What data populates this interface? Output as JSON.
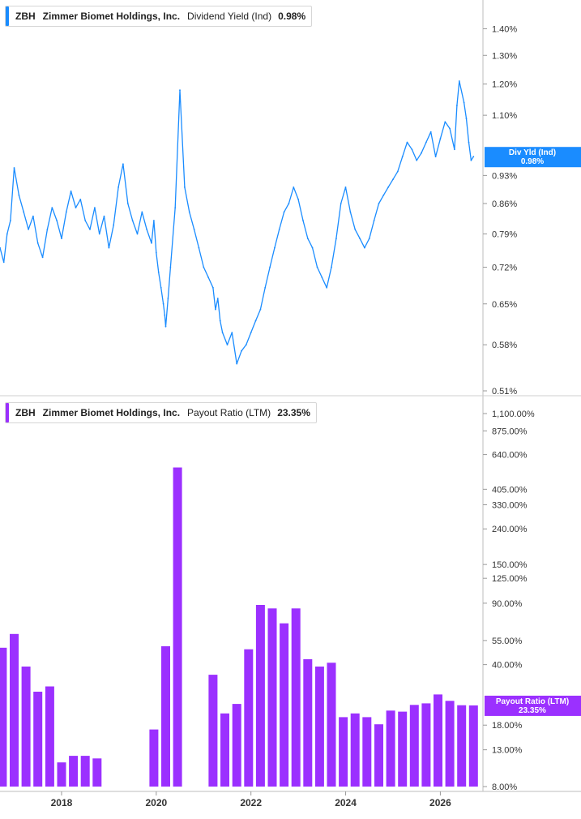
{
  "chart_data": [
    {
      "type": "line",
      "ticker": "ZBH",
      "company": "Zimmer Biomet Holdings, Inc.",
      "metric": "Dividend Yield (Ind)",
      "current_value": "0.98%",
      "tag_lines": [
        "Div Yld (Ind)",
        "0.98%"
      ],
      "color": "#1a8cff",
      "scale": "log",
      "ylim": [
        0.51,
        1.45
      ],
      "yticks": [
        0.51,
        0.58,
        0.65,
        0.72,
        0.79,
        0.86,
        0.93,
        1.1,
        1.2,
        1.3,
        1.4
      ],
      "ytick_labels": [
        "0.51%",
        "0.58%",
        "0.65%",
        "0.72%",
        "0.79%",
        "0.86%",
        "0.93%",
        "1.10%",
        "1.20%",
        "1.30%",
        "1.40%"
      ],
      "xlim": [
        2016.7,
        2026.9
      ],
      "series": [
        {
          "x": [
            2016.7,
            2016.78,
            2016.85,
            2016.92,
            2017.0,
            2017.1,
            2017.2,
            2017.3,
            2017.4,
            2017.5,
            2017.6,
            2017.7,
            2017.8,
            2017.9,
            2018.0,
            2018.1,
            2018.2,
            2018.3,
            2018.4,
            2018.5,
            2018.6,
            2018.7,
            2018.8,
            2018.9,
            2019.0,
            2019.1,
            2019.2,
            2019.3,
            2019.4,
            2019.5,
            2019.6,
            2019.7,
            2019.8,
            2019.9,
            2019.95,
            2020.0,
            2020.05,
            2020.1,
            2020.15,
            2020.18,
            2020.2,
            2020.25,
            2020.3,
            2020.4,
            2020.5,
            2020.6,
            2020.7,
            2020.8,
            2020.9,
            2021.0,
            2021.1,
            2021.2,
            2021.25,
            2021.3,
            2021.35,
            2021.4,
            2021.5,
            2021.6,
            2021.7,
            2021.8,
            2021.9,
            2022.0,
            2022.1,
            2022.2,
            2022.3,
            2022.4,
            2022.5,
            2022.6,
            2022.7,
            2022.8,
            2022.9,
            2023.0,
            2023.1,
            2023.2,
            2023.3,
            2023.4,
            2023.5,
            2023.6,
            2023.7,
            2023.8,
            2023.9,
            2024.0,
            2024.1,
            2024.2,
            2024.3,
            2024.4,
            2024.5,
            2024.6,
            2024.7,
            2024.8,
            2024.9,
            2025.0,
            2025.1,
            2025.2,
            2025.3,
            2025.4,
            2025.5,
            2025.6,
            2025.7,
            2025.8,
            2025.9,
            2026.0,
            2026.1,
            2026.2,
            2026.3,
            2026.35,
            2026.4,
            2026.5,
            2026.55,
            2026.6,
            2026.65,
            2026.7
          ],
          "y": [
            0.76,
            0.73,
            0.79,
            0.82,
            0.95,
            0.88,
            0.84,
            0.8,
            0.83,
            0.77,
            0.74,
            0.8,
            0.85,
            0.82,
            0.78,
            0.84,
            0.89,
            0.85,
            0.87,
            0.82,
            0.8,
            0.85,
            0.79,
            0.83,
            0.76,
            0.81,
            0.9,
            0.96,
            0.86,
            0.82,
            0.79,
            0.84,
            0.8,
            0.77,
            0.82,
            0.75,
            0.71,
            0.68,
            0.65,
            0.63,
            0.61,
            0.66,
            0.72,
            0.85,
            1.18,
            0.9,
            0.84,
            0.8,
            0.76,
            0.72,
            0.7,
            0.68,
            0.64,
            0.66,
            0.62,
            0.6,
            0.58,
            0.6,
            0.55,
            0.57,
            0.58,
            0.6,
            0.62,
            0.64,
            0.68,
            0.72,
            0.76,
            0.8,
            0.84,
            0.86,
            0.9,
            0.87,
            0.82,
            0.78,
            0.76,
            0.72,
            0.7,
            0.68,
            0.72,
            0.78,
            0.86,
            0.9,
            0.84,
            0.8,
            0.78,
            0.76,
            0.78,
            0.82,
            0.86,
            0.88,
            0.9,
            0.92,
            0.94,
            0.98,
            1.02,
            1.0,
            0.97,
            0.99,
            1.02,
            1.05,
            0.98,
            1.03,
            1.08,
            1.06,
            1.0,
            1.13,
            1.21,
            1.14,
            1.09,
            1.02,
            0.97,
            0.98
          ]
        }
      ]
    },
    {
      "type": "bar",
      "ticker": "ZBH",
      "company": "Zimmer Biomet Holdings, Inc.",
      "metric": "Payout Ratio (LTM)",
      "current_value": "23.35%",
      "tag_lines": [
        "Payout Ratio (LTM)",
        "23.35%"
      ],
      "color": "#9b30ff",
      "scale": "log",
      "ylim": [
        8,
        1100
      ],
      "yticks": [
        8,
        13,
        18,
        40,
        55,
        90,
        125,
        150,
        240,
        330,
        405,
        640,
        875,
        1100
      ],
      "ytick_labels": [
        "8.00%",
        "13.00%",
        "18.00%",
        "40.00%",
        "55.00%",
        "90.00%",
        "125.00%",
        "150.00%",
        "240.00%",
        "330.00%",
        "405.00%",
        "640.00%",
        "875.00%",
        "1,100.00%"
      ],
      "xlim": [
        2016.7,
        2026.9
      ],
      "x_ticks": [
        2018,
        2020,
        2022,
        2024,
        2026
      ],
      "x_tick_labels": [
        "2018",
        "2020",
        "2022",
        "2024",
        "2026"
      ],
      "x": [
        2016.75,
        2017.0,
        2017.25,
        2017.5,
        2017.75,
        2018.0,
        2018.25,
        2018.5,
        2018.75,
        2019.95,
        2020.2,
        2020.45,
        2021.2,
        2021.45,
        2021.7,
        2021.95,
        2022.2,
        2022.45,
        2022.7,
        2022.95,
        2023.2,
        2023.45,
        2023.7,
        2023.95,
        2024.2,
        2024.45,
        2024.7,
        2024.95,
        2025.2,
        2025.45,
        2025.7,
        2025.95,
        2026.2,
        2026.45,
        2026.7
      ],
      "values": [
        50,
        60,
        39,
        28,
        30,
        11,
        12,
        12,
        11.6,
        17,
        51,
        540,
        35,
        21,
        23.8,
        49,
        88,
        84,
        69,
        84,
        43,
        39,
        41,
        20,
        21,
        20,
        18.2,
        21.8,
        21.5,
        23.5,
        24,
        27,
        24.8,
        23.4,
        23.35
      ]
    }
  ]
}
